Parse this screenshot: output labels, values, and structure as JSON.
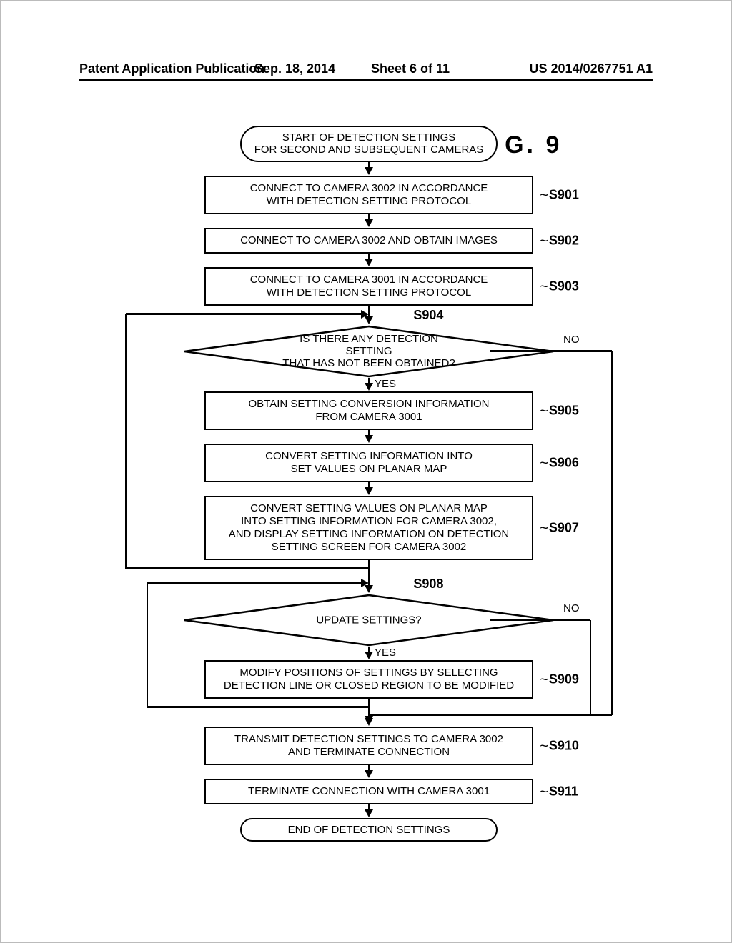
{
  "header": {
    "publication": "Patent Application Publication",
    "date": "Sep. 18, 2014",
    "sheet": "Sheet 6 of 11",
    "code": "US 2014/0267751 A1"
  },
  "figure_label": "F I G.   9",
  "steps": {
    "start": "START OF DETECTION SETTINGS\nFOR SECOND AND SUBSEQUENT CAMERAS",
    "s901": {
      "label": "S901",
      "text": "CONNECT TO CAMERA 3002 IN ACCORDANCE\nWITH DETECTION SETTING PROTOCOL"
    },
    "s902": {
      "label": "S902",
      "text": "CONNECT TO CAMERA 3002 AND OBTAIN IMAGES"
    },
    "s903": {
      "label": "S903",
      "text": "CONNECT TO CAMERA 3001 IN ACCORDANCE\nWITH DETECTION SETTING PROTOCOL"
    },
    "s904": {
      "label": "S904",
      "text": "IS THERE ANY DETECTION SETTING\nTHAT HAS NOT BEEN OBTAINED?",
      "yes": "YES",
      "no": "NO"
    },
    "s905": {
      "label": "S905",
      "text": "OBTAIN SETTING CONVERSION INFORMATION\nFROM CAMERA 3001"
    },
    "s906": {
      "label": "S906",
      "text": "CONVERT SETTING INFORMATION INTO\nSET VALUES ON PLANAR MAP"
    },
    "s907": {
      "label": "S907",
      "text": "CONVERT SETTING VALUES ON PLANAR MAP\nINTO SETTING INFORMATION FOR CAMERA 3002,\nAND DISPLAY SETTING INFORMATION ON DETECTION\nSETTING SCREEN FOR CAMERA 3002"
    },
    "s908": {
      "label": "S908",
      "text": "UPDATE SETTINGS?",
      "yes": "YES",
      "no": "NO"
    },
    "s909": {
      "label": "S909",
      "text": "MODIFY POSITIONS OF SETTINGS BY SELECTING\nDETECTION LINE OR CLOSED REGION TO BE MODIFIED"
    },
    "s910": {
      "label": "S910",
      "text": "TRANSMIT DETECTION SETTINGS TO CAMERA 3002\nAND TERMINATE CONNECTION"
    },
    "s911": {
      "label": "S911",
      "text": "TERMINATE CONNECTION WITH CAMERA 3001"
    },
    "end": "END OF DETECTION SETTINGS"
  },
  "style": {
    "line_color": "#000000",
    "line_width": 2.5,
    "bg": "#ffffff",
    "font_size_body": 15,
    "font_size_label": 18,
    "font_size_fig": 34,
    "terminator_radius": 50,
    "process_width": 460,
    "terminator_width": 360,
    "decision_width": 520,
    "decision_height": 74
  }
}
